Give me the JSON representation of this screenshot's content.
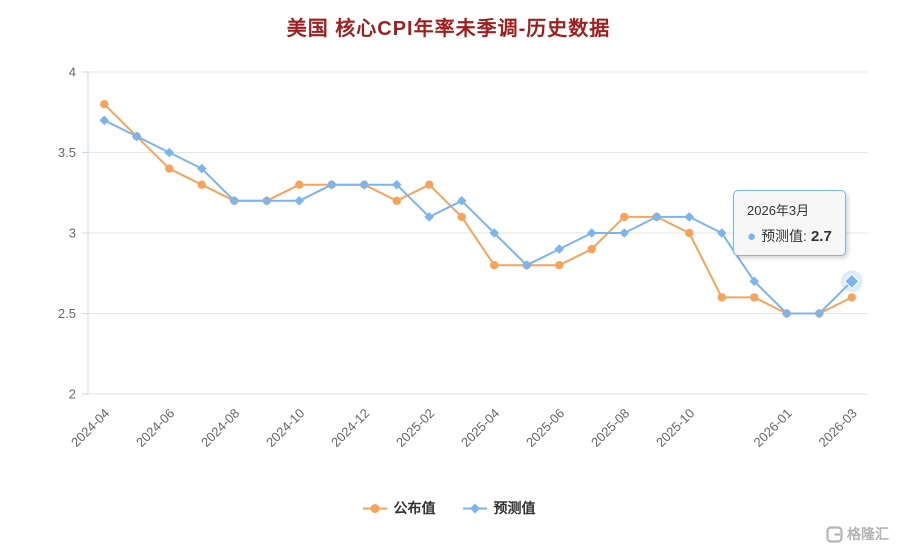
{
  "page": {
    "title": "美国 核心CPI年率未季调-历史数据"
  },
  "colors": {
    "title": "#9e1f1f",
    "published": "#f7a35c",
    "forecast": "#7cb5ec",
    "grid": "#e6e6e6",
    "axis": "#ccd6eb",
    "tick_label": "#666666",
    "watermark": "#b5b5b5",
    "tooltip_border": "#7cb5ec"
  },
  "tooltip": {
    "date": "2026年3月",
    "series_label": "预测值:",
    "value": "2.7",
    "bullet": "●"
  },
  "legend": [
    {
      "label": "公布值",
      "color": "#f7a35c",
      "marker": "circle"
    },
    {
      "label": "预测值",
      "color": "#7cb5ec",
      "marker": "diamond"
    }
  ],
  "watermark": {
    "text": "格隆汇"
  },
  "chart_data": {
    "type": "line",
    "title": "美国 核心CPI年率未季调-历史数据",
    "xlabel": "",
    "ylabel": "",
    "ylim": [
      2,
      4
    ],
    "yticks": [
      2,
      2.5,
      3,
      3.5,
      4
    ],
    "grid": "horizontal",
    "legend_position": "bottom",
    "categories": [
      "2024-04",
      "2024-05",
      "2024-06",
      "2024-07",
      "2024-08",
      "2024-09",
      "2024-10",
      "2024-11",
      "2024-12",
      "2025-01",
      "2025-02",
      "2025-03",
      "2025-04",
      "2025-05",
      "2025-06",
      "2025-07",
      "2025-08",
      "2025-09",
      "2025-10",
      "2025-11",
      "2025-12",
      "2026-01",
      "2026-02",
      "2026-03"
    ],
    "xtick_labels": [
      "2024-04",
      "2024-06",
      "2024-08",
      "2024-10",
      "2024-12",
      "2025-02",
      "2025-04",
      "2025-06",
      "2025-08",
      "2025-10",
      "2026-01",
      "2026-03"
    ],
    "xtick_indices": [
      0,
      2,
      4,
      6,
      8,
      10,
      12,
      14,
      16,
      18,
      21,
      23
    ],
    "series": [
      {
        "name": "公布值",
        "color": "#f7a35c",
        "marker": "circle",
        "values": [
          3.8,
          3.6,
          3.4,
          3.3,
          3.2,
          3.2,
          3.3,
          3.3,
          3.3,
          3.2,
          3.3,
          3.1,
          2.8,
          2.8,
          2.8,
          2.9,
          3.1,
          3.1,
          3.0,
          2.6,
          2.6,
          2.5,
          2.5,
          2.6
        ]
      },
      {
        "name": "预测值",
        "color": "#7cb5ec",
        "marker": "diamond",
        "values": [
          3.7,
          3.6,
          3.5,
          3.4,
          3.2,
          3.2,
          3.2,
          3.3,
          3.3,
          3.3,
          3.1,
          3.2,
          3.0,
          2.8,
          2.9,
          3.0,
          3.0,
          3.1,
          3.1,
          3.0,
          2.7,
          2.5,
          2.5,
          2.7
        ]
      }
    ],
    "highlight": {
      "series_index": 1,
      "point_index": 23,
      "label": "2026年3月",
      "value": 2.7
    }
  }
}
